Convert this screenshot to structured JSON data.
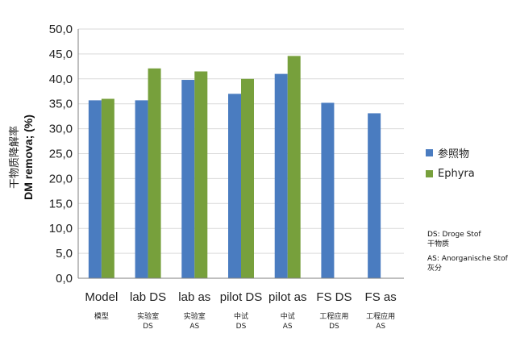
{
  "chart_data": {
    "type": "bar",
    "title": "",
    "ylabel_cn": "干物质降解率",
    "ylabel": "DM remova; (%)",
    "ylim": [
      0,
      50
    ],
    "yticks": [
      "0,0",
      "5,0",
      "10,0",
      "15,0",
      "20,0",
      "25,0",
      "30,0",
      "35,0",
      "40,0",
      "45,0",
      "50,0"
    ],
    "grid": true,
    "categories": [
      "Model",
      "lab DS",
      "lab as",
      "pilot DS",
      "pilot as",
      "FS DS",
      "FS as"
    ],
    "category_cn": [
      [
        "模型"
      ],
      [
        "实验室",
        "DS"
      ],
      [
        "实验室",
        "AS"
      ],
      [
        "中试",
        "DS"
      ],
      [
        "中试",
        "AS"
      ],
      [
        "工程应用",
        "DS"
      ],
      [
        "工程应用",
        "AS"
      ]
    ],
    "series": [
      {
        "name": "参照物",
        "color": "#4a7cc0",
        "values": [
          35.7,
          35.7,
          39.8,
          37.0,
          41.0,
          35.2,
          33.1
        ]
      },
      {
        "name": "Ephyra",
        "color": "#77a03c",
        "values": [
          36.0,
          42.1,
          41.5,
          40.0,
          44.6,
          null,
          null
        ]
      }
    ],
    "legend_position": "right"
  },
  "notes": {
    "ds_line1": "DS: Droge Stof",
    "ds_line2": "干物质",
    "as_line1": "AS: Anorganische Stof",
    "as_line2": "灰分"
  }
}
